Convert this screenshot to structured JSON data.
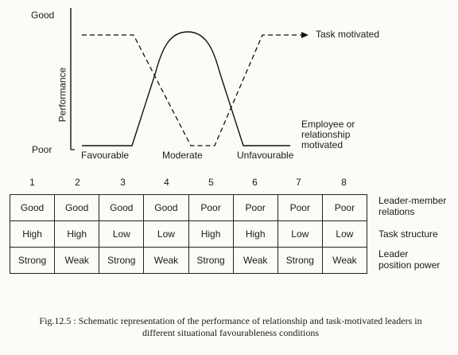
{
  "diagram": {
    "y_label": "Performance",
    "y_top": "Good",
    "y_bottom": "Poor",
    "x_labels": [
      "Favourable",
      "Moderate",
      "Unfavourable"
    ],
    "series": {
      "task": "Task motivated",
      "relationship_line1": "Employee or",
      "relationship_line2": "relationship",
      "relationship_line3": "motivated"
    }
  },
  "table": {
    "column_numbers": [
      "1",
      "2",
      "3",
      "4",
      "5",
      "6",
      "7",
      "8"
    ],
    "rows": [
      {
        "label_line1": "Leader-member",
        "label_line2": "relations",
        "cells": [
          "Good",
          "Good",
          "Good",
          "Good",
          "Poor",
          "Poor",
          "Poor",
          "Poor"
        ]
      },
      {
        "label_line1": "Task structure",
        "label_line2": "",
        "cells": [
          "High",
          "High",
          "Low",
          "Low",
          "High",
          "High",
          "Low",
          "Low"
        ]
      },
      {
        "label_line1": "Leader",
        "label_line2": "position power",
        "cells": [
          "Strong",
          "Weak",
          "Strong",
          "Weak",
          "Strong",
          "Weak",
          "Strong",
          "Weak"
        ]
      }
    ]
  },
  "caption": {
    "line1": "Fig.12.5 : Schematic representation of the performance of relationship and task-motivated leaders in",
    "line2": "different situational favourableness conditions"
  }
}
